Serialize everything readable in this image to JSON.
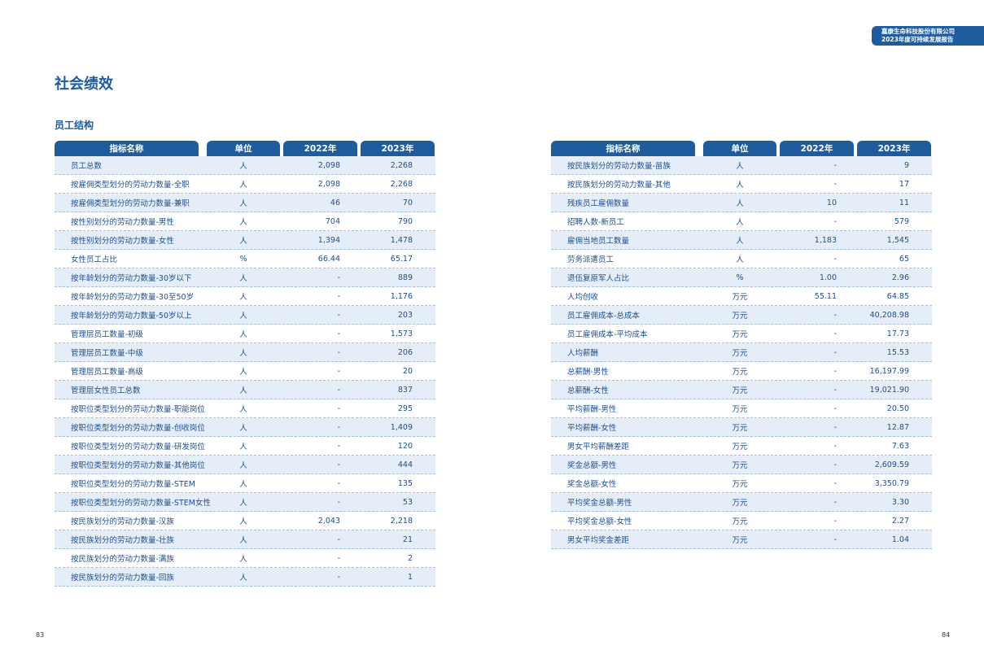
{
  "header": {
    "company": "嘉康生命科技股份有限公司",
    "report": "2023年度可持续发展报告"
  },
  "page_title": "社会绩效",
  "section_title": "员工结构",
  "columns": {
    "name": "指标名称",
    "unit": "单位",
    "y2022": "2022年",
    "y2023": "2023年"
  },
  "left_rows": [
    {
      "name": "员工总数",
      "unit": "人",
      "v2022": "2,098",
      "v2023": "2,268"
    },
    {
      "name": "按雇佣类型划分的劳动力数量-全职",
      "unit": "人",
      "v2022": "2,098",
      "v2023": "2,268"
    },
    {
      "name": "按雇佣类型划分的劳动力数量-兼职",
      "unit": "人",
      "v2022": "46",
      "v2023": "70"
    },
    {
      "name": "按性别划分的劳动力数量-男性",
      "unit": "人",
      "v2022": "704",
      "v2023": "790"
    },
    {
      "name": "按性别划分的劳动力数量-女性",
      "unit": "人",
      "v2022": "1,394",
      "v2023": "1,478"
    },
    {
      "name": "女性员工占比",
      "unit": "%",
      "v2022": "66.44",
      "v2023": "65.17"
    },
    {
      "name": "按年龄划分的劳动力数量-30岁以下",
      "unit": "人",
      "v2022": "-",
      "v2023": "889"
    },
    {
      "name": "按年龄划分的劳动力数量-30至50岁",
      "unit": "人",
      "v2022": "-",
      "v2023": "1,176"
    },
    {
      "name": "按年龄划分的劳动力数量-50岁以上",
      "unit": "人",
      "v2022": "-",
      "v2023": "203"
    },
    {
      "name": "管理层员工数量-初级",
      "unit": "人",
      "v2022": "-",
      "v2023": "1,573"
    },
    {
      "name": "管理层员工数量-中级",
      "unit": "人",
      "v2022": "-",
      "v2023": "206"
    },
    {
      "name": "管理层员工数量-高级",
      "unit": "人",
      "v2022": "-",
      "v2023": "20"
    },
    {
      "name": "管理层女性员工总数",
      "unit": "人",
      "v2022": "-",
      "v2023": "837"
    },
    {
      "name": "按职位类型划分的劳动力数量-职能岗位",
      "unit": "人",
      "v2022": "-",
      "v2023": "295"
    },
    {
      "name": "按职位类型划分的劳动力数量-创收岗位",
      "unit": "人",
      "v2022": "-",
      "v2023": "1,409"
    },
    {
      "name": "按职位类型划分的劳动力数量-研发岗位",
      "unit": "人",
      "v2022": "-",
      "v2023": "120"
    },
    {
      "name": "按职位类型划分的劳动力数量-其他岗位",
      "unit": "人",
      "v2022": "-",
      "v2023": "444"
    },
    {
      "name": "按职位类型划分的劳动力数量-STEM",
      "unit": "人",
      "v2022": "-",
      "v2023": "135"
    },
    {
      "name": "按职位类型划分的劳动力数量-STEM女性",
      "unit": "人",
      "v2022": "-",
      "v2023": "53"
    },
    {
      "name": "按民族划分的劳动力数量-汉族",
      "unit": "人",
      "v2022": "2,043",
      "v2023": "2,218"
    },
    {
      "name": "按民族划分的劳动力数量-壮族",
      "unit": "人",
      "v2022": "-",
      "v2023": "21"
    },
    {
      "name": "按民族划分的劳动力数量-满族",
      "unit": "人",
      "v2022": "-",
      "v2023": "2"
    },
    {
      "name": "按民族划分的劳动力数量-回族",
      "unit": "人",
      "v2022": "-",
      "v2023": "1"
    }
  ],
  "right_rows": [
    {
      "name": "按民族划分的劳动力数量-苗族",
      "unit": "人",
      "v2022": "-",
      "v2023": "9"
    },
    {
      "name": "按民族划分的劳动力数量-其他",
      "unit": "人",
      "v2022": "-",
      "v2023": "17"
    },
    {
      "name": "残疾员工雇佣数量",
      "unit": "人",
      "v2022": "10",
      "v2023": "11"
    },
    {
      "name": "招聘人数-新员工",
      "unit": "人",
      "v2022": "-",
      "v2023": "579"
    },
    {
      "name": "雇佣当地员工数量",
      "unit": "人",
      "v2022": "1,183",
      "v2023": "1,545"
    },
    {
      "name": "劳务派遣员工",
      "unit": "人",
      "v2022": "-",
      "v2023": "65"
    },
    {
      "name": "退伍复原军人占比",
      "unit": "%",
      "v2022": "1.00",
      "v2023": "2.96"
    },
    {
      "name": "人均创收",
      "unit": "万元",
      "v2022": "55.11",
      "v2023": "64.85"
    },
    {
      "name": "员工雇佣成本-总成本",
      "unit": "万元",
      "v2022": "-",
      "v2023": "40,208.98"
    },
    {
      "name": "员工雇佣成本-平均成本",
      "unit": "万元",
      "v2022": "-",
      "v2023": "17.73"
    },
    {
      "name": "人均薪酬",
      "unit": "万元",
      "v2022": "-",
      "v2023": "15.53"
    },
    {
      "name": "总薪酬-男性",
      "unit": "万元",
      "v2022": "-",
      "v2023": "16,197.99"
    },
    {
      "name": "总薪酬-女性",
      "unit": "万元",
      "v2022": "-",
      "v2023": "19,021.90"
    },
    {
      "name": "平均薪酬-男性",
      "unit": "万元",
      "v2022": "-",
      "v2023": "20.50"
    },
    {
      "name": "平均薪酬-女性",
      "unit": "万元",
      "v2022": "-",
      "v2023": "12.87"
    },
    {
      "name": "男女平均薪酬差距",
      "unit": "万元",
      "v2022": "-",
      "v2023": "7.63"
    },
    {
      "name": "奖金总额-男性",
      "unit": "万元",
      "v2022": "-",
      "v2023": "2,609.59"
    },
    {
      "name": "奖金总额-女性",
      "unit": "万元",
      "v2022": "-",
      "v2023": "3,350.79"
    },
    {
      "name": "平均奖金总额-男性",
      "unit": "万元",
      "v2022": "-",
      "v2023": "3.30"
    },
    {
      "name": "平均奖金总额-女性",
      "unit": "万元",
      "v2022": "-",
      "v2023": "2.27"
    },
    {
      "name": "男女平均奖金差距",
      "unit": "万元",
      "v2022": "-",
      "v2023": "1.04"
    }
  ],
  "page_numbers": {
    "left": "83",
    "right": "84"
  }
}
